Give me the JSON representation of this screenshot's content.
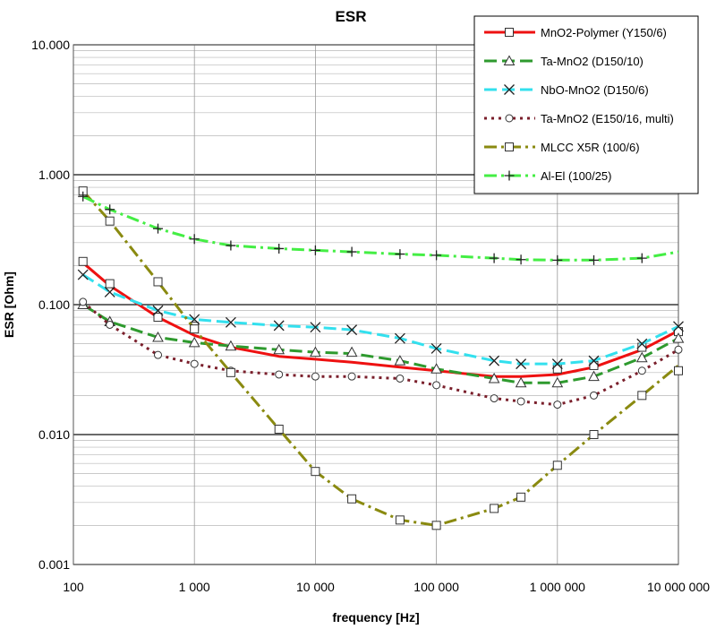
{
  "chart_data": {
    "type": "line",
    "title": "ESR",
    "xlabel": "frequency [Hz]",
    "ylabel": "ESR [Ohm]",
    "x_scale": "log",
    "y_scale": "log",
    "xlim": [
      100,
      10000000
    ],
    "ylim": [
      0.001,
      10
    ],
    "x_ticks": [
      {
        "value": 100,
        "label": "100"
      },
      {
        "value": 1000,
        "label": "1 000"
      },
      {
        "value": 10000,
        "label": "10 000"
      },
      {
        "value": 100000,
        "label": "100 000"
      },
      {
        "value": 1000000,
        "label": "1 000 000"
      },
      {
        "value": 10000000,
        "label": "10 000 000"
      }
    ],
    "y_ticks": [
      {
        "value": 0.001,
        "label": "0.001"
      },
      {
        "value": 0.01,
        "label": "0.010"
      },
      {
        "value": 0.1,
        "label": "0.100"
      },
      {
        "value": 1,
        "label": "1.000"
      },
      {
        "value": 10,
        "label": "10.000"
      }
    ],
    "grid": true,
    "legend_position": "top-right",
    "series": [
      {
        "name": "MnO2-Polymer (Y150/6)",
        "color": "#ee1111",
        "dash": "solid",
        "marker": "square",
        "line": [
          [
            120,
            0.21
          ],
          [
            200,
            0.14
          ],
          [
            500,
            0.08
          ],
          [
            1000,
            0.058
          ],
          [
            2000,
            0.047
          ],
          [
            5000,
            0.04
          ],
          [
            10000,
            0.038
          ],
          [
            20000,
            0.036
          ],
          [
            50000,
            0.033
          ],
          [
            100000,
            0.031
          ],
          [
            300000,
            0.028
          ],
          [
            500000,
            0.028
          ],
          [
            1000000,
            0.029
          ],
          [
            2000000,
            0.033
          ],
          [
            5000000,
            0.045
          ],
          [
            10000000,
            0.063
          ]
        ],
        "marker_points": [
          [
            120,
            0.215
          ],
          [
            200,
            0.145
          ],
          [
            500,
            0.08
          ],
          [
            1000,
            0.068
          ],
          [
            1000000,
            0.032
          ],
          [
            2000000,
            0.034
          ],
          [
            5000000,
            0.047
          ],
          [
            10000000,
            0.062
          ]
        ]
      },
      {
        "name": "Ta-MnO2 (D150/10)",
        "color": "#2e9a2e",
        "dash": "dash",
        "marker": "triangle",
        "line": [
          [
            120,
            0.1
          ],
          [
            200,
            0.074
          ],
          [
            500,
            0.056
          ],
          [
            1000,
            0.051
          ],
          [
            2000,
            0.048
          ],
          [
            5000,
            0.045
          ],
          [
            10000,
            0.043
          ],
          [
            20000,
            0.042
          ],
          [
            50000,
            0.037
          ],
          [
            100000,
            0.032
          ],
          [
            300000,
            0.027
          ],
          [
            500000,
            0.025
          ],
          [
            1000000,
            0.025
          ],
          [
            2000000,
            0.028
          ],
          [
            5000000,
            0.039
          ],
          [
            10000000,
            0.055
          ]
        ],
        "marker_points": [
          [
            120,
            0.1
          ],
          [
            200,
            0.074
          ],
          [
            500,
            0.056
          ],
          [
            1000,
            0.051
          ],
          [
            2000,
            0.048
          ],
          [
            5000,
            0.045
          ],
          [
            10000,
            0.043
          ],
          [
            20000,
            0.043
          ],
          [
            50000,
            0.037
          ],
          [
            100000,
            0.032
          ],
          [
            300000,
            0.027
          ],
          [
            500000,
            0.025
          ],
          [
            1000000,
            0.025
          ],
          [
            2000000,
            0.028
          ],
          [
            5000000,
            0.039
          ],
          [
            10000000,
            0.055
          ]
        ]
      },
      {
        "name": "NbO-MnO2 (D150/6)",
        "color": "#33e0ee",
        "dash": "dash",
        "marker": "x",
        "line": [
          [
            120,
            0.17
          ],
          [
            200,
            0.125
          ],
          [
            500,
            0.09
          ],
          [
            1000,
            0.077
          ],
          [
            2000,
            0.073
          ],
          [
            5000,
            0.069
          ],
          [
            10000,
            0.067
          ],
          [
            20000,
            0.064
          ],
          [
            50000,
            0.055
          ],
          [
            100000,
            0.046
          ],
          [
            300000,
            0.037
          ],
          [
            500000,
            0.035
          ],
          [
            1000000,
            0.035
          ],
          [
            2000000,
            0.037
          ],
          [
            5000000,
            0.05
          ],
          [
            10000000,
            0.068
          ]
        ],
        "marker_points": [
          [
            120,
            0.17
          ],
          [
            200,
            0.125
          ],
          [
            500,
            0.09
          ],
          [
            1000,
            0.077
          ],
          [
            2000,
            0.073
          ],
          [
            5000,
            0.069
          ],
          [
            10000,
            0.067
          ],
          [
            20000,
            0.064
          ],
          [
            50000,
            0.055
          ],
          [
            100000,
            0.046
          ],
          [
            300000,
            0.037
          ],
          [
            500000,
            0.035
          ],
          [
            1000000,
            0.035
          ],
          [
            2000000,
            0.037
          ],
          [
            5000000,
            0.05
          ],
          [
            10000000,
            0.068
          ]
        ]
      },
      {
        "name": "Ta-MnO2 (E150/16, multi)",
        "color": "#7a1f2b",
        "dash": "dot",
        "marker": "circle",
        "line": [
          [
            120,
            0.105
          ],
          [
            200,
            0.07
          ],
          [
            500,
            0.041
          ],
          [
            1000,
            0.035
          ],
          [
            2000,
            0.031
          ],
          [
            5000,
            0.029
          ],
          [
            10000,
            0.028
          ],
          [
            20000,
            0.028
          ],
          [
            50000,
            0.027
          ],
          [
            100000,
            0.024
          ],
          [
            300000,
            0.019
          ],
          [
            500000,
            0.018
          ],
          [
            1000000,
            0.017
          ],
          [
            2000000,
            0.02
          ],
          [
            5000000,
            0.031
          ],
          [
            10000000,
            0.045
          ]
        ],
        "marker_points": [
          [
            120,
            0.105
          ],
          [
            200,
            0.07
          ],
          [
            500,
            0.041
          ],
          [
            1000,
            0.035
          ],
          [
            2000,
            0.031
          ],
          [
            5000,
            0.029
          ],
          [
            10000,
            0.028
          ],
          [
            20000,
            0.028
          ],
          [
            50000,
            0.027
          ],
          [
            100000,
            0.024
          ],
          [
            300000,
            0.019
          ],
          [
            500000,
            0.018
          ],
          [
            1000000,
            0.017
          ],
          [
            2000000,
            0.02
          ],
          [
            5000000,
            0.031
          ],
          [
            10000000,
            0.045
          ]
        ]
      },
      {
        "name": "MLCC X5R (100/6)",
        "color": "#8a8a10",
        "dash": "dashdot",
        "marker": "square",
        "line": [
          [
            120,
            0.75
          ],
          [
            200,
            0.44
          ],
          [
            500,
            0.15
          ],
          [
            1000,
            0.065
          ],
          [
            2000,
            0.03
          ],
          [
            5000,
            0.011
          ],
          [
            10000,
            0.0052
          ],
          [
            20000,
            0.0032
          ],
          [
            50000,
            0.0022
          ],
          [
            100000,
            0.002
          ],
          [
            300000,
            0.0027
          ],
          [
            500000,
            0.0033
          ],
          [
            1000000,
            0.0058
          ],
          [
            2000000,
            0.01
          ],
          [
            5000000,
            0.02
          ],
          [
            10000000,
            0.034
          ]
        ],
        "marker_points": [
          [
            120,
            0.75
          ],
          [
            200,
            0.44
          ],
          [
            500,
            0.15
          ],
          [
            1000,
            0.065
          ],
          [
            2000,
            0.03
          ],
          [
            5000,
            0.011
          ],
          [
            10000,
            0.0052
          ],
          [
            20000,
            0.0032
          ],
          [
            50000,
            0.0022
          ],
          [
            100000,
            0.002
          ],
          [
            300000,
            0.0027
          ],
          [
            500000,
            0.0033
          ],
          [
            1000000,
            0.0058
          ],
          [
            2000000,
            0.01
          ],
          [
            5000000,
            0.02
          ],
          [
            10000000,
            0.031
          ]
        ]
      },
      {
        "name": "Al-El (100/25)",
        "color": "#44ee44",
        "dash": "dashdot",
        "marker": "plus",
        "line": [
          [
            120,
            0.68
          ],
          [
            200,
            0.54
          ],
          [
            500,
            0.385
          ],
          [
            1000,
            0.32
          ],
          [
            2000,
            0.285
          ],
          [
            5000,
            0.27
          ],
          [
            10000,
            0.262
          ],
          [
            20000,
            0.255
          ],
          [
            50000,
            0.245
          ],
          [
            100000,
            0.24
          ],
          [
            300000,
            0.228
          ],
          [
            500000,
            0.222
          ],
          [
            1000000,
            0.22
          ],
          [
            2000000,
            0.22
          ],
          [
            5000000,
            0.228
          ],
          [
            10000000,
            0.255
          ]
        ],
        "marker_points": [
          [
            120,
            0.68
          ],
          [
            200,
            0.54
          ],
          [
            500,
            0.385
          ],
          [
            1000,
            0.32
          ],
          [
            2000,
            0.285
          ],
          [
            5000,
            0.27
          ],
          [
            10000,
            0.262
          ],
          [
            20000,
            0.255
          ],
          [
            50000,
            0.245
          ],
          [
            100000,
            0.24
          ],
          [
            300000,
            0.228
          ],
          [
            500000,
            0.222
          ],
          [
            1000000,
            0.22
          ],
          [
            2000000,
            0.22
          ],
          [
            5000000,
            0.228
          ]
        ]
      }
    ]
  }
}
